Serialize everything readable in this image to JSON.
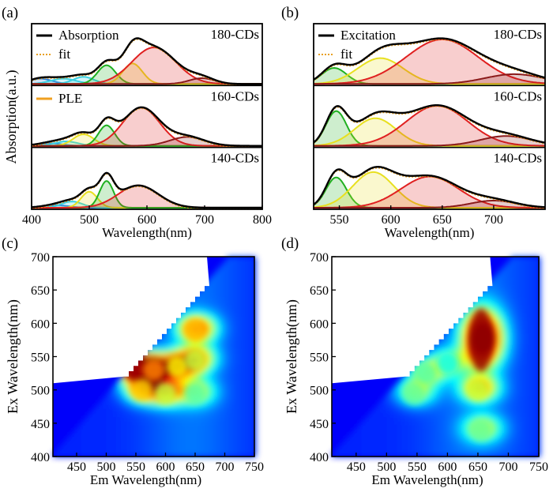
{
  "colors": {
    "absorption": "#000000",
    "fit": "#e8a020",
    "ple": "#f0a020",
    "blue": "#2f7fd8",
    "cyan": "#3ad0e0",
    "green": "#20b020",
    "yellow": "#e8e020",
    "red": "#e02020",
    "darkred": "#8b1a1a"
  },
  "chart_data": [
    {
      "panel": "(a)",
      "type": "line",
      "xlabel": "Wavelength(nm)",
      "ylabel": "Absorption(a.u.)",
      "xlim": [
        400,
        800
      ],
      "xticks": [
        "400",
        "500",
        "600",
        "700",
        "800"
      ],
      "legend": [
        "Absorption",
        "fit",
        "PLE"
      ],
      "subplots": [
        {
          "label": "180-CDs",
          "components": [
            [
              415,
              20,
              0.12
            ],
            [
              455,
              22,
              0.12
            ],
            [
              490,
              18,
              0.16
            ],
            [
              530,
              16,
              0.42
            ],
            [
              575,
              17,
              0.46
            ],
            [
              612,
              38,
              0.82
            ],
            [
              695,
              22,
              0.13
            ]
          ]
        },
        {
          "label": "160-CDs",
          "components": [
            [
              430,
              22,
              0.06
            ],
            [
              460,
              20,
              0.1
            ],
            [
              490,
              18,
              0.26
            ],
            [
              530,
              14,
              0.46
            ],
            [
              590,
              32,
              0.86
            ],
            [
              670,
              30,
              0.2
            ]
          ]
        },
        {
          "label": "140-CDs",
          "components": [
            [
              440,
              22,
              0.06
            ],
            [
              470,
              18,
              0.14
            ],
            [
              500,
              14,
              0.36
            ],
            [
              530,
              12,
              0.6
            ],
            [
              585,
              35,
              0.5
            ]
          ]
        }
      ]
    },
    {
      "panel": "(b)",
      "type": "line",
      "xlabel": "Wavelength(nm)",
      "xlim": [
        525,
        750
      ],
      "xticks": [
        "550",
        "600",
        "650",
        "700"
      ],
      "legend": [
        "Excitation",
        "fit"
      ],
      "subplots": [
        {
          "label": "180-CDs",
          "components": [
            [
              545,
              12,
              0.36
            ],
            [
              590,
              22,
              0.58
            ],
            [
              650,
              35,
              1.0
            ],
            [
              720,
              28,
              0.22
            ]
          ]
        },
        {
          "label": "160-CDs",
          "components": [
            [
              547,
              10,
              0.78
            ],
            [
              585,
              20,
              0.62
            ],
            [
              645,
              30,
              0.9
            ],
            [
              712,
              25,
              0.22
            ]
          ]
        },
        {
          "label": "140-CDs",
          "components": [
            [
              547,
              10,
              0.68
            ],
            [
              583,
              20,
              0.8
            ],
            [
              638,
              28,
              0.7
            ],
            [
              700,
              22,
              0.16
            ]
          ]
        }
      ]
    },
    {
      "panel": "(c)",
      "type": "heatmap",
      "xlabel": "Em Wavelength(nm)",
      "ylabel": "Ex Wavelength(nm)",
      "xlim": [
        410,
        750
      ],
      "ylim": [
        400,
        700
      ],
      "xticks": [
        "450",
        "500",
        "550",
        "600",
        "650",
        "700",
        "750"
      ],
      "yticks": [
        "400",
        "450",
        "500",
        "550",
        "600",
        "650",
        "700"
      ],
      "peaks": [
        [
          548,
          532,
          0.98
        ],
        [
          580,
          530,
          0.72
        ],
        [
          620,
          535,
          0.58
        ],
        [
          650,
          590,
          0.64
        ],
        [
          650,
          545,
          0.5
        ],
        [
          560,
          500,
          0.62
        ],
        [
          600,
          495,
          0.5
        ],
        [
          650,
          495,
          0.36
        ]
      ]
    },
    {
      "panel": "(d)",
      "type": "heatmap",
      "xlabel": "Em Wavelength(nm)",
      "ylabel": "Ex Wavelength(nm)",
      "xlim": [
        410,
        750
      ],
      "ylim": [
        400,
        700
      ],
      "xticks": [
        "450",
        "500",
        "550",
        "600",
        "650",
        "700",
        "750"
      ],
      "yticks": [
        "400",
        "450",
        "500",
        "550",
        "600",
        "650",
        "700"
      ],
      "peaks": [
        [
          655,
          575,
          1.0
        ],
        [
          650,
          500,
          0.5
        ],
        [
          655,
          440,
          0.38
        ],
        [
          545,
          495,
          0.38
        ],
        [
          565,
          525,
          0.36
        ],
        [
          600,
          540,
          0.28
        ]
      ]
    }
  ]
}
